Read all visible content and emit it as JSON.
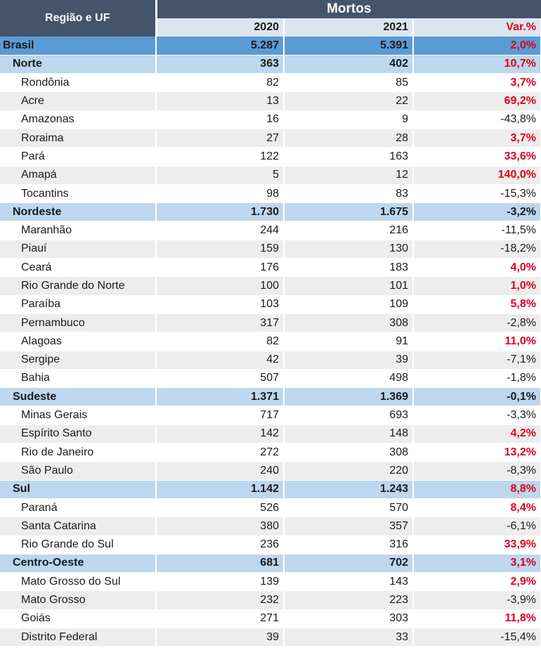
{
  "chart_data": {
    "type": "table",
    "header": {
      "region_col": "Região e UF",
      "group": "Mortos",
      "year1": "2020",
      "year2": "2021",
      "var": "Var.%"
    },
    "rows": [
      {
        "name": "Brasil",
        "level": "country",
        "v2020": "5.287",
        "v2021": "5.391",
        "var": "2,0%",
        "up": true
      },
      {
        "name": "Norte",
        "level": "region",
        "v2020": "363",
        "v2021": "402",
        "var": "10,7%",
        "up": true
      },
      {
        "name": "Rondônia",
        "level": "state",
        "v2020": "82",
        "v2021": "85",
        "var": "3,7%",
        "up": true
      },
      {
        "name": "Acre",
        "level": "state",
        "v2020": "13",
        "v2021": "22",
        "var": "69,2%",
        "up": true
      },
      {
        "name": "Amazonas",
        "level": "state",
        "v2020": "16",
        "v2021": "9",
        "var": "-43,8%",
        "up": false
      },
      {
        "name": "Roraima",
        "level": "state",
        "v2020": "27",
        "v2021": "28",
        "var": "3,7%",
        "up": true
      },
      {
        "name": "Pará",
        "level": "state",
        "v2020": "122",
        "v2021": "163",
        "var": "33,6%",
        "up": true
      },
      {
        "name": "Amapá",
        "level": "state",
        "v2020": "5",
        "v2021": "12",
        "var": "140,0%",
        "up": true
      },
      {
        "name": "Tocantins",
        "level": "state",
        "v2020": "98",
        "v2021": "83",
        "var": "-15,3%",
        "up": false
      },
      {
        "name": "Nordeste",
        "level": "region",
        "v2020": "1.730",
        "v2021": "1.675",
        "var": "-3,2%",
        "up": false
      },
      {
        "name": "Maranhão",
        "level": "state",
        "v2020": "244",
        "v2021": "216",
        "var": "-11,5%",
        "up": false
      },
      {
        "name": "Piauí",
        "level": "state",
        "v2020": "159",
        "v2021": "130",
        "var": "-18,2%",
        "up": false
      },
      {
        "name": "Ceará",
        "level": "state",
        "v2020": "176",
        "v2021": "183",
        "var": "4,0%",
        "up": true
      },
      {
        "name": "Rio Grande do Norte",
        "level": "state",
        "v2020": "100",
        "v2021": "101",
        "var": "1,0%",
        "up": true
      },
      {
        "name": "Paraíba",
        "level": "state",
        "v2020": "103",
        "v2021": "109",
        "var": "5,8%",
        "up": true
      },
      {
        "name": "Pernambuco",
        "level": "state",
        "v2020": "317",
        "v2021": "308",
        "var": "-2,8%",
        "up": false
      },
      {
        "name": "Alagoas",
        "level": "state",
        "v2020": "82",
        "v2021": "91",
        "var": "11,0%",
        "up": true
      },
      {
        "name": "Sergipe",
        "level": "state",
        "v2020": "42",
        "v2021": "39",
        "var": "-7,1%",
        "up": false
      },
      {
        "name": "Bahia",
        "level": "state",
        "v2020": "507",
        "v2021": "498",
        "var": "-1,8%",
        "up": false
      },
      {
        "name": "Sudeste",
        "level": "region",
        "v2020": "1.371",
        "v2021": "1.369",
        "var": "-0,1%",
        "up": false
      },
      {
        "name": "Minas Gerais",
        "level": "state",
        "v2020": "717",
        "v2021": "693",
        "var": "-3,3%",
        "up": false
      },
      {
        "name": "Espírito Santo",
        "level": "state",
        "v2020": "142",
        "v2021": "148",
        "var": "4,2%",
        "up": true
      },
      {
        "name": "Rio de Janeiro",
        "level": "state",
        "v2020": "272",
        "v2021": "308",
        "var": "13,2%",
        "up": true
      },
      {
        "name": "São Paulo",
        "level": "state",
        "v2020": "240",
        "v2021": "220",
        "var": "-8,3%",
        "up": false
      },
      {
        "name": "Sul",
        "level": "region",
        "v2020": "1.142",
        "v2021": "1.243",
        "var": "8,8%",
        "up": true
      },
      {
        "name": "Paraná",
        "level": "state",
        "v2020": "526",
        "v2021": "570",
        "var": "8,4%",
        "up": true
      },
      {
        "name": "Santa Catarina",
        "level": "state",
        "v2020": "380",
        "v2021": "357",
        "var": "-6,1%",
        "up": false
      },
      {
        "name": "Rio Grande do Sul",
        "level": "state",
        "v2020": "236",
        "v2021": "316",
        "var": "33,9%",
        "up": true
      },
      {
        "name": "Centro-Oeste",
        "level": "region",
        "v2020": "681",
        "v2021": "702",
        "var": "3,1%",
        "up": true
      },
      {
        "name": "Mato Grosso do Sul",
        "level": "state",
        "v2020": "139",
        "v2021": "143",
        "var": "2,9%",
        "up": true
      },
      {
        "name": "Mato Grosso",
        "level": "state",
        "v2020": "232",
        "v2021": "223",
        "var": "-3,9%",
        "up": false
      },
      {
        "name": "Goiás",
        "level": "state",
        "v2020": "271",
        "v2021": "303",
        "var": "11,8%",
        "up": true
      },
      {
        "name": "Distrito Federal",
        "level": "state",
        "v2020": "39",
        "v2021": "33",
        "var": "-15,4%",
        "up": false
      }
    ]
  }
}
